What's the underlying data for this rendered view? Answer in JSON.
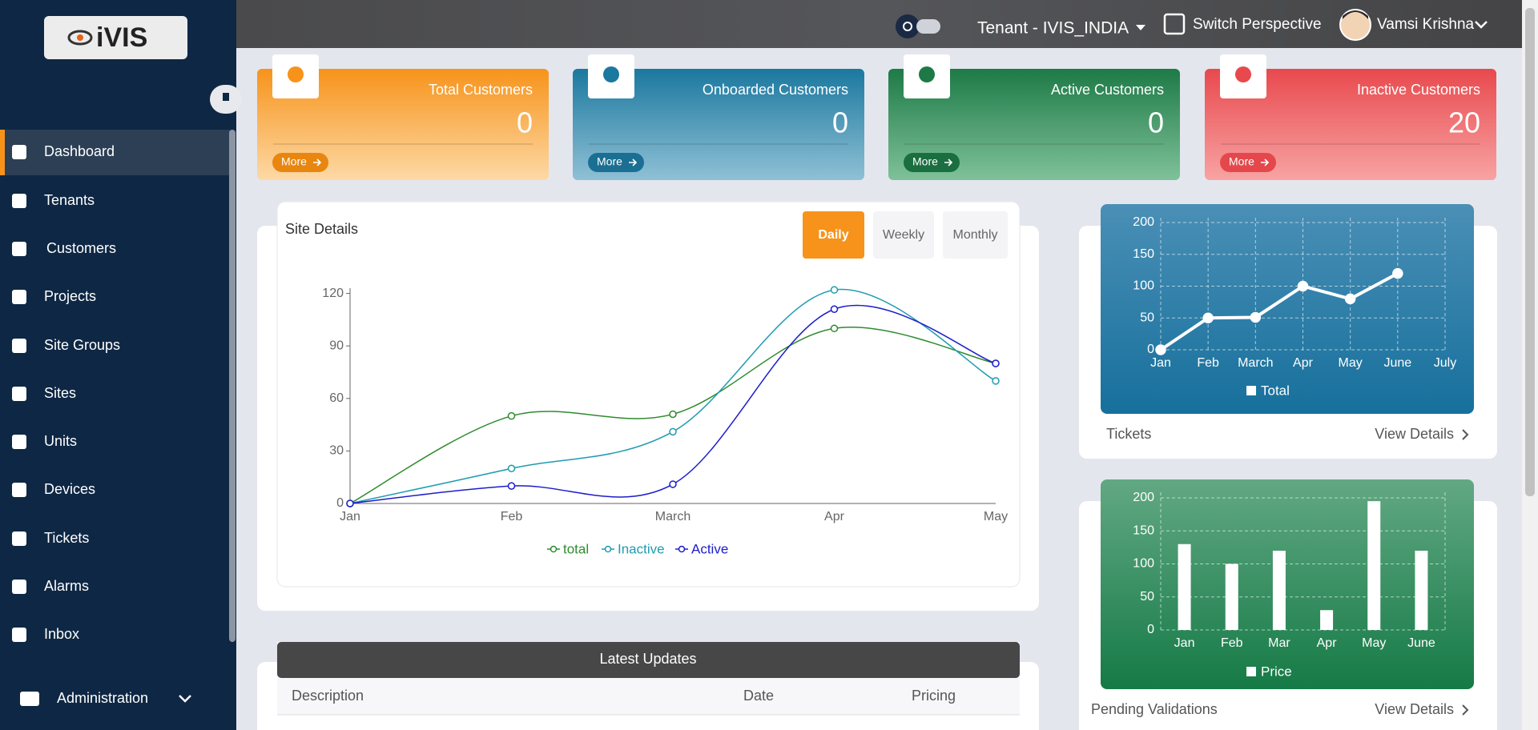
{
  "logo": "iVIS",
  "header": {
    "tenant": "Tenant - IVIS_INDIA",
    "switch": "Switch Perspective",
    "user": "Vamsi Krishna"
  },
  "sidebar": {
    "items": [
      "Dashboard",
      "Tenants",
      "Customers",
      "Projects",
      "Site Groups",
      "Sites",
      "Units",
      "Devices",
      "Tickets",
      "Alarms",
      "Inbox"
    ],
    "admin": "Administration"
  },
  "cards": [
    {
      "title": "Total Customers",
      "value": 0,
      "more": "More"
    },
    {
      "title": "Onboarded Customers",
      "value": 0,
      "more": "More"
    },
    {
      "title": "Active Customers",
      "value": 0,
      "more": "More"
    },
    {
      "title": "Inactive Customers",
      "value": 20,
      "more": "More"
    }
  ],
  "site_details": {
    "title": "Site Details",
    "tabs": [
      "Daily",
      "Weekly",
      "Monthly"
    ],
    "chart": {
      "type": "line",
      "categories": [
        "Jan",
        "Feb",
        "March",
        "Apr",
        "May"
      ],
      "series": [
        {
          "name": "total",
          "color": "#2e8b2e",
          "values": [
            0,
            50,
            51,
            100,
            80
          ]
        },
        {
          "name": "Inactive",
          "color": "#1f9bb0",
          "values": [
            0,
            20,
            41,
            122,
            70
          ]
        },
        {
          "name": "Active",
          "color": "#1c1ccc",
          "values": [
            0,
            10,
            11,
            111,
            80
          ]
        }
      ],
      "ylim": [
        0,
        123
      ],
      "yticks": [
        0,
        30,
        60,
        90,
        120
      ],
      "grid": false,
      "smooth": true
    }
  },
  "tickets": {
    "title": "Tickets",
    "link": "View Details",
    "chart": {
      "type": "line",
      "categories": [
        "Jan",
        "Feb",
        "March",
        "Apr",
        "May",
        "June",
        "July"
      ],
      "series": [
        {
          "name": "Total",
          "color": "#ffffff",
          "values": [
            0,
            50,
            51,
            100,
            80,
            120,
            null
          ]
        }
      ],
      "ylim": [
        0,
        200
      ],
      "yticks": [
        0,
        50,
        100,
        150,
        200
      ],
      "grid": true,
      "smooth": false
    }
  },
  "pending": {
    "title": "Pending Validations",
    "link": "View Details",
    "chart": {
      "type": "bar",
      "categories": [
        "Jan",
        "Feb",
        "Mar",
        "Apr",
        "May",
        "June"
      ],
      "series": [
        {
          "name": "Price",
          "color": "#ffffff",
          "values": [
            130,
            100,
            120,
            30,
            195,
            120
          ]
        }
      ],
      "ylim": [
        0,
        200
      ],
      "yticks": [
        0,
        50,
        100,
        150,
        200
      ],
      "grid": true
    }
  },
  "updates": {
    "title": "Latest Updates",
    "columns": [
      "Description",
      "Date",
      "Pricing"
    ]
  }
}
